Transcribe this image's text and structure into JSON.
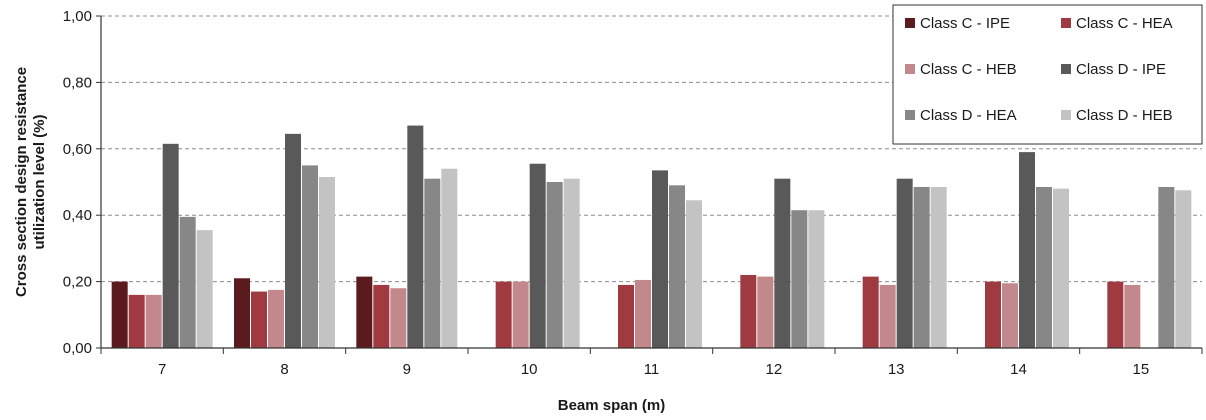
{
  "chart_data": {
    "type": "bar",
    "xlabel": "Beam span (m)",
    "ylabel_lines": [
      "Cross section design resistance",
      "utilization level (%)"
    ],
    "ylim": [
      0,
      1
    ],
    "yticks": [
      "0,00",
      "0,20",
      "0,40",
      "0,60",
      "0,80",
      "1,00"
    ],
    "grid": "horizontal dashed",
    "legend_position": "top-right",
    "categories": [
      "7",
      "8",
      "9",
      "10",
      "11",
      "12",
      "13",
      "14",
      "15"
    ],
    "series": [
      {
        "name": "Class C - IPE",
        "color": "#5a1a1e",
        "values": [
          0.2,
          0.21,
          0.215,
          null,
          null,
          null,
          null,
          null,
          null
        ]
      },
      {
        "name": "Class C - HEA",
        "color": "#9e3a40",
        "values": [
          0.16,
          0.17,
          0.19,
          0.2,
          0.19,
          0.22,
          0.215,
          0.2,
          0.2
        ]
      },
      {
        "name": "Class C - HEB",
        "color": "#c2888b",
        "values": [
          0.16,
          0.175,
          0.18,
          0.2,
          0.205,
          0.215,
          0.19,
          0.195,
          0.19
        ]
      },
      {
        "name": "Class D - IPE",
        "color": "#595959",
        "values": [
          0.615,
          0.645,
          0.67,
          0.555,
          0.535,
          0.51,
          0.51,
          0.59,
          null
        ]
      },
      {
        "name": "Class D - HEA",
        "color": "#878787",
        "values": [
          0.395,
          0.55,
          0.51,
          0.5,
          0.49,
          0.415,
          0.485,
          0.485,
          0.485
        ]
      },
      {
        "name": "Class D - HEB",
        "color": "#c3c3c3",
        "values": [
          0.355,
          0.515,
          0.54,
          0.51,
          0.445,
          0.415,
          0.485,
          0.48,
          0.475
        ]
      }
    ]
  }
}
